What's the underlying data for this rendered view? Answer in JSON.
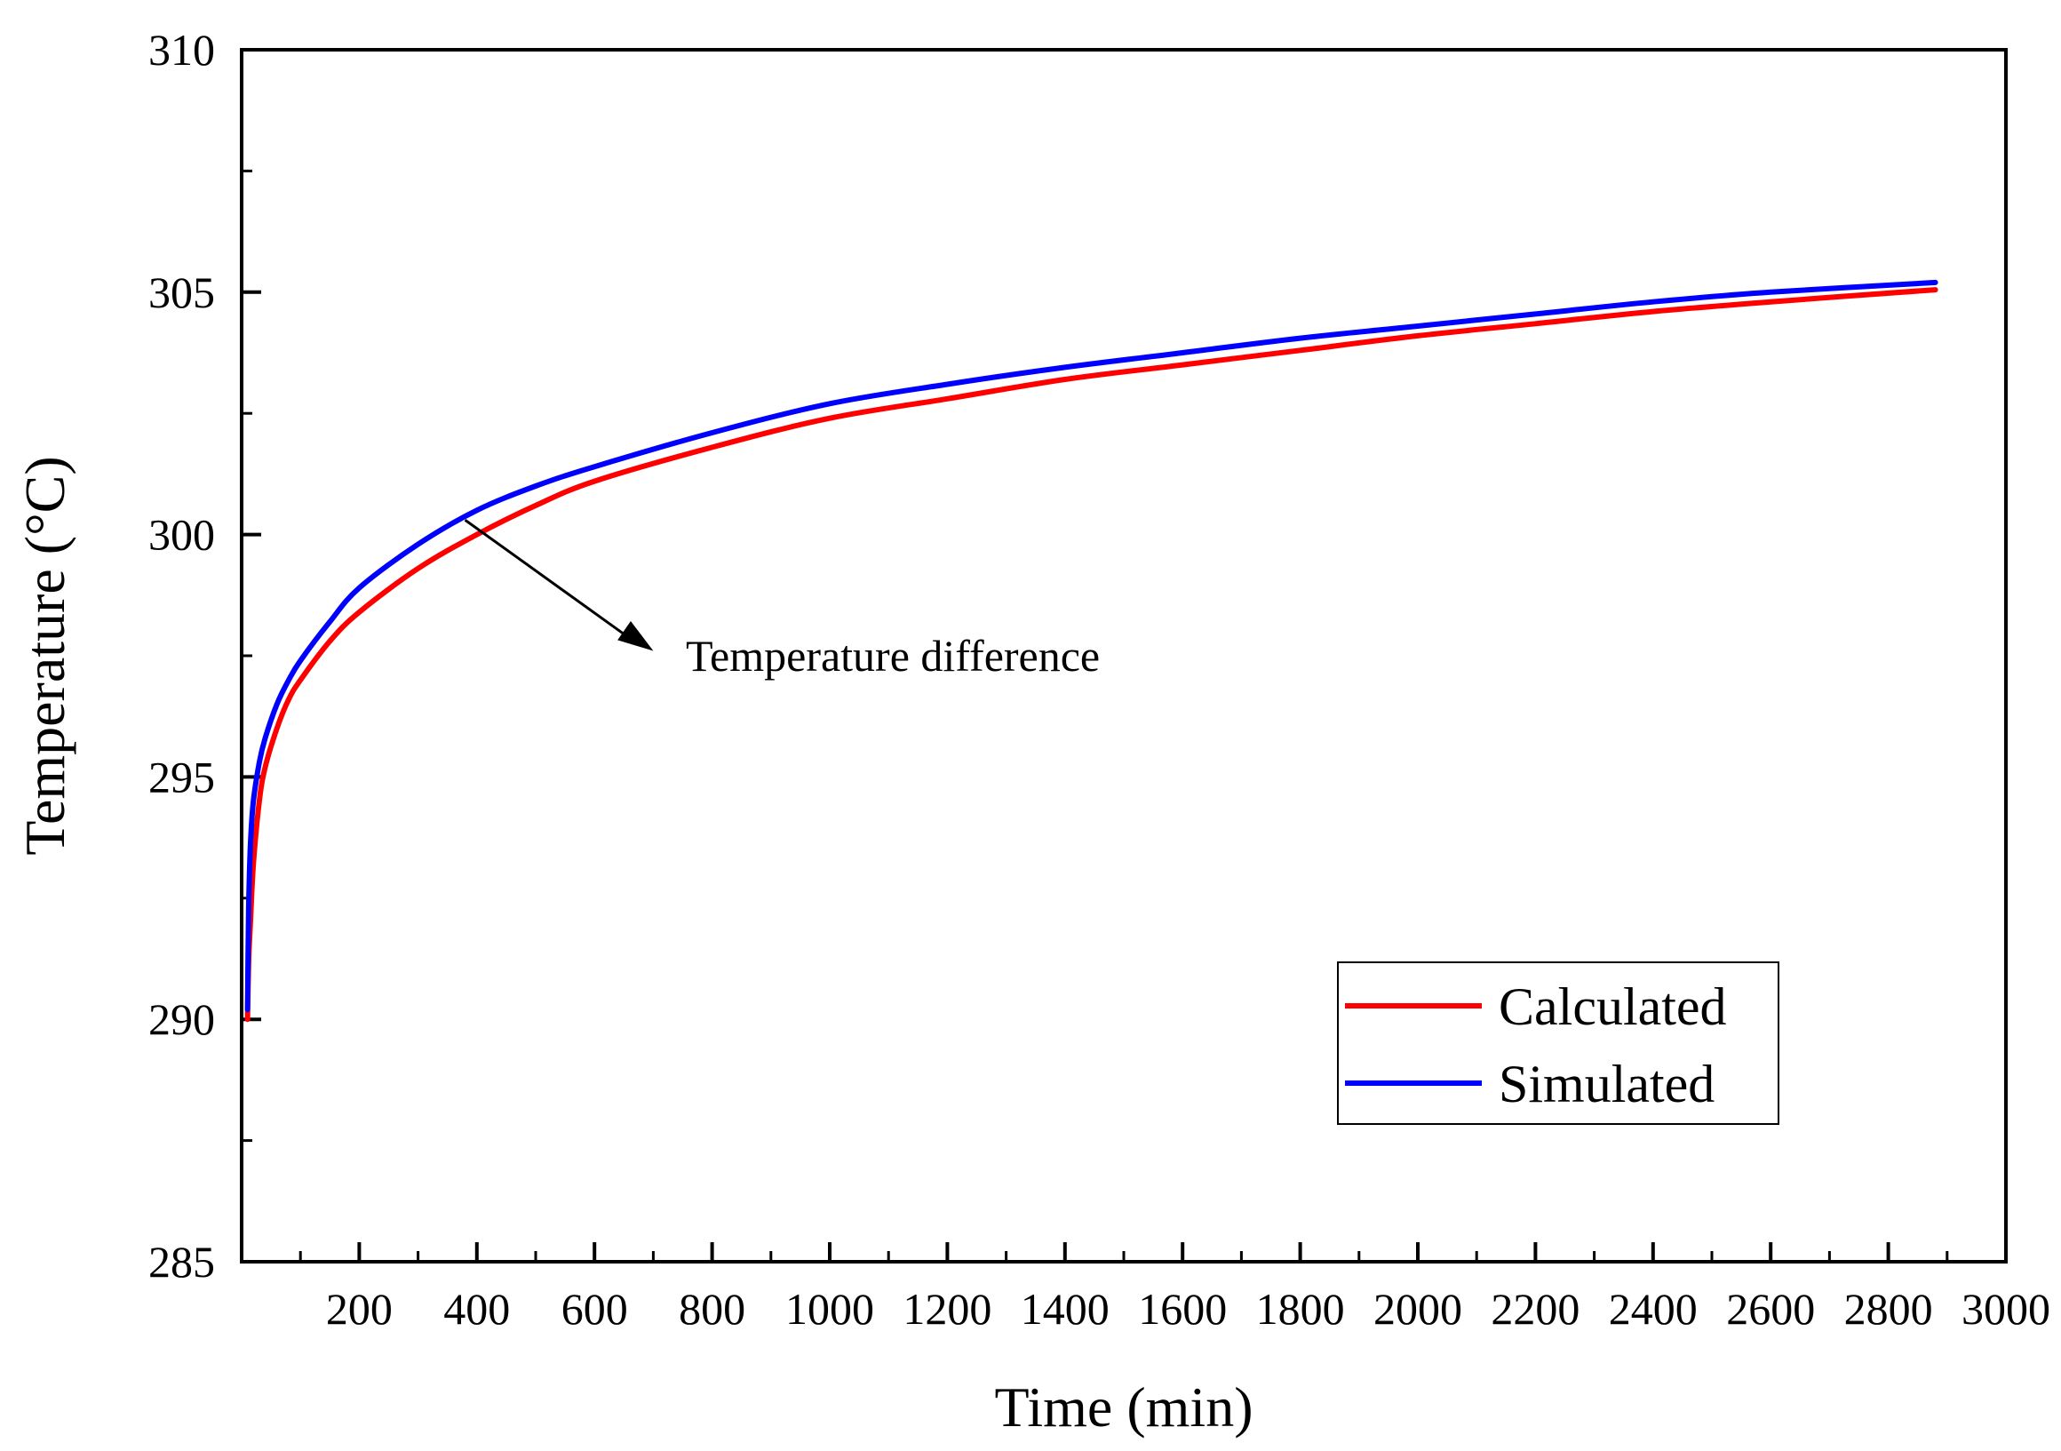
{
  "chart_data": {
    "type": "line",
    "title": "",
    "xlabel": "Time (min)",
    "ylabel": "Temperature (°C)",
    "xlim": [
      0,
      3000
    ],
    "ylim": [
      285,
      310
    ],
    "xticks": [
      200,
      400,
      600,
      800,
      1000,
      1200,
      1400,
      1600,
      1800,
      2000,
      2200,
      2400,
      2600,
      2800,
      3000
    ],
    "yticks": [
      285,
      290,
      295,
      300,
      305,
      310
    ],
    "grid": false,
    "legend_position": "bottom-right",
    "annotation": {
      "text": "Temperature difference",
      "arrow_from": [
        380,
        300.3
      ],
      "arrow_to": [
        700,
        297.6
      ]
    },
    "series": [
      {
        "name": "Calculated",
        "color": "#ff0000",
        "x": [
          10,
          12,
          15,
          20,
          30,
          40,
          60,
          80,
          100,
          150,
          200,
          300,
          400,
          500,
          600,
          800,
          1000,
          1200,
          1400,
          1600,
          1800,
          2000,
          2200,
          2400,
          2600,
          2880
        ],
        "y": [
          290.0,
          291.2,
          292.0,
          293.2,
          294.5,
          295.2,
          296.0,
          296.6,
          297.0,
          297.8,
          298.4,
          299.3,
          300.0,
          300.6,
          301.1,
          301.8,
          302.4,
          302.8,
          303.2,
          303.5,
          303.8,
          304.1,
          304.35,
          304.6,
          304.8,
          305.05
        ]
      },
      {
        "name": "Simulated",
        "color": "#0000ff",
        "x": [
          10,
          12,
          15,
          20,
          30,
          40,
          60,
          80,
          100,
          150,
          200,
          300,
          400,
          500,
          600,
          800,
          1000,
          1200,
          1400,
          1600,
          1800,
          2000,
          2200,
          2400,
          2600,
          2880
        ],
        "y": [
          290.2,
          292.3,
          293.6,
          294.5,
          295.3,
          295.8,
          296.5,
          297.0,
          297.4,
          298.2,
          298.9,
          299.8,
          300.5,
          301.0,
          301.4,
          302.1,
          302.7,
          303.1,
          303.45,
          303.75,
          304.05,
          304.3,
          304.55,
          304.8,
          305.0,
          305.2
        ]
      }
    ]
  }
}
